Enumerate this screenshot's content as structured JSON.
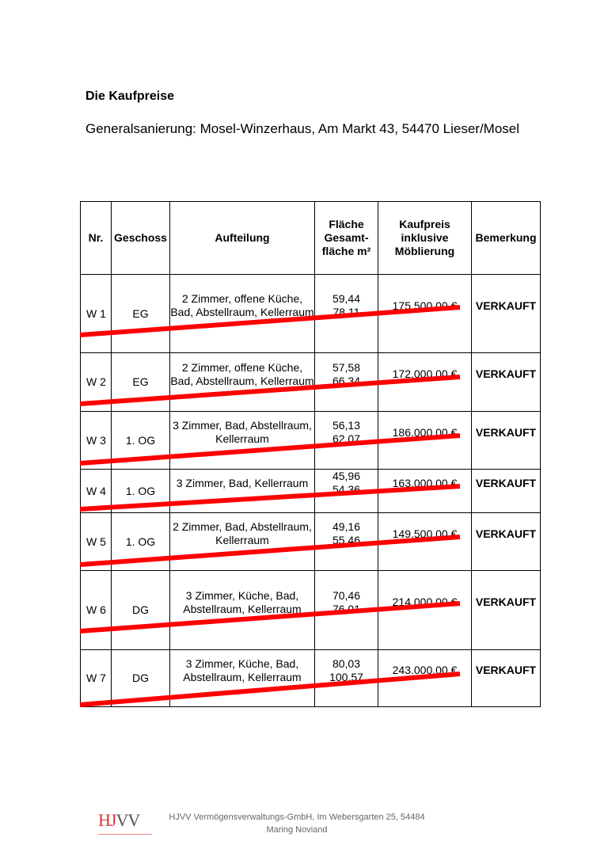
{
  "title": "Die Kaufpreise",
  "subtitle": "Generalsanierung: Mosel-Winzerhaus, Am Markt 43, 54470 Lieser/Mosel",
  "table": {
    "headers": {
      "nr": "Nr.",
      "geschoss": "Geschoss",
      "aufteilung": "Aufteilung",
      "flaeche": "Fläche Gesamt-fläche m²",
      "kaufpreis": "Kaufpreis inklusive Möblierung",
      "bemerkung": "Bemerkung"
    },
    "rows": [
      {
        "nr": "W 1",
        "geschoss": "EG",
        "aufteilung": "2 Zimmer, offene Küche, Bad, Abstellraum, Kellerraum",
        "flaeche": "59,44",
        "gesamtflaeche": "78,11",
        "kaufpreis": "175.500,00 €",
        "bemerkung": "VERKAUFT"
      },
      {
        "nr": "W 2",
        "geschoss": "EG",
        "aufteilung": "2 Zimmer, offene Küche, Bad, Abstellraum, Kellerraum",
        "flaeche": "57,58",
        "gesamtflaeche": "66,34",
        "kaufpreis": "172.000,00 €",
        "bemerkung": "VERKAUFT"
      },
      {
        "nr": "W 3",
        "geschoss": "1. OG",
        "aufteilung": "3 Zimmer, Bad, Abstellraum, Kellerraum",
        "flaeche": "56,13",
        "gesamtflaeche": "62,07",
        "kaufpreis": "186.000,00 €",
        "bemerkung": "VERKAUFT"
      },
      {
        "nr": "W 4",
        "geschoss": "1. OG",
        "aufteilung": "3 Zimmer, Bad, Kellerraum",
        "flaeche": "45,96",
        "gesamtflaeche": "54,36",
        "kaufpreis": "163.000,00 €",
        "bemerkung": "VERKAUFT"
      },
      {
        "nr": "W 5",
        "geschoss": "1. OG",
        "aufteilung": "2 Zimmer, Bad, Abstellraum, Kellerraum",
        "flaeche": "49,16",
        "gesamtflaeche": "55,46",
        "kaufpreis": "149.500,00 €",
        "bemerkung": "VERKAUFT"
      },
      {
        "nr": "W 6",
        "geschoss": "DG",
        "aufteilung": "3 Zimmer, Küche, Bad, Abstellraum, Kellerraum",
        "flaeche": "70,46",
        "gesamtflaeche": "76,01",
        "kaufpreis": "214.000,00 €",
        "bemerkung": "VERKAUFT"
      },
      {
        "nr": "W 7",
        "geschoss": "DG",
        "aufteilung": "3 Zimmer, Küche, Bad, Abstellraum, Kellerraum",
        "flaeche": "80,03",
        "gesamtflaeche": "100,57",
        "kaufpreis": "243.000,00 €",
        "bemerkung": "VERKAUFT"
      }
    ]
  },
  "strike_color": "#ff0000",
  "footer": {
    "logo_text": "HJVV",
    "line1": "HJVV Vermögensverwaltungs-GmbH, Im Webersgarten 25, 54484",
    "line2": "Maring Noviand"
  }
}
